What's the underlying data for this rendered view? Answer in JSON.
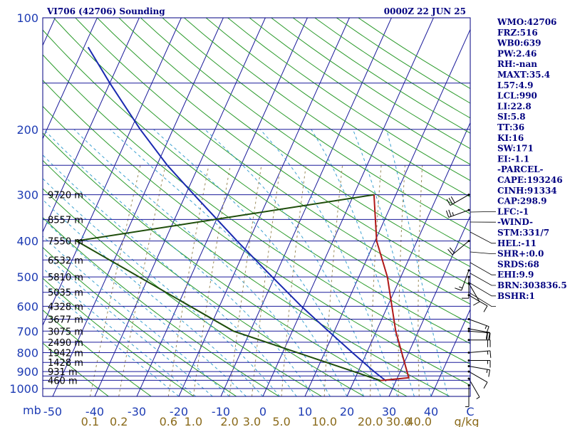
{
  "header": {
    "title": "VI706 (42706) Sounding",
    "time": "0000Z 22 JUN 25"
  },
  "colors": {
    "isobar": "#1a1a9a",
    "isotherm": "#1a1a9a",
    "dry_adiabat": "#2a9a2a",
    "moist_adiabat": "#3aa0d0",
    "mixing_ratio": "#9a8a5a",
    "temperature": "#b01818",
    "dewpoint": "#1e4d0a",
    "parcel": "#1a2ab0"
  },
  "chart_data": {
    "type": "skew-t",
    "pressure_unit": "mb",
    "pressure_ticks": [
      "100",
      "200",
      "300",
      "400",
      "500",
      "600",
      "700",
      "800",
      "900",
      "1000"
    ],
    "pressure_tick_values": [
      100,
      200,
      300,
      400,
      500,
      600,
      700,
      800,
      900,
      1000
    ],
    "isobar_levels": [
      100,
      150,
      200,
      250,
      300,
      350,
      400,
      450,
      500,
      550,
      600,
      650,
      700,
      750,
      800,
      850,
      900,
      925,
      950,
      1000
    ],
    "temp_ticks": [
      "-50",
      "-40",
      "-30",
      "-20",
      "-10",
      "0",
      "10",
      "20",
      "30",
      "40",
      "C"
    ],
    "temp_tick_values": [
      -50,
      -40,
      -30,
      -20,
      -10,
      0,
      10,
      20,
      30,
      40
    ],
    "temp_unit": "C",
    "mixing_ratio_ticks": [
      "0.1",
      "0.2",
      "0.6",
      "1.0",
      "2.0",
      "3.0",
      "5.0",
      "10.0",
      "20.0",
      "30.0",
      "40.0",
      "g/kg"
    ],
    "mixing_ratio_values": [
      0.1,
      0.2,
      0.6,
      1.0,
      2.0,
      3.0,
      5.0,
      10.0,
      20.0,
      30.0,
      40.0
    ],
    "height_labels": [
      {
        "p": 300,
        "text": "9720 m"
      },
      {
        "p": 350,
        "text": "8557 m"
      },
      {
        "p": 400,
        "text": "7550 m"
      },
      {
        "p": 450,
        "text": "6532 m"
      },
      {
        "p": 500,
        "text": "5810 m"
      },
      {
        "p": 550,
        "text": "5035 m"
      },
      {
        "p": 600,
        "text": "4328 m"
      },
      {
        "p": 650,
        "text": "3677 m"
      },
      {
        "p": 700,
        "text": "3075 m"
      },
      {
        "p": 750,
        "text": "2490 m"
      },
      {
        "p": 800,
        "text": "1942 m"
      },
      {
        "p": 850,
        "text": "1428 m"
      },
      {
        "p": 900,
        "text": "931 m"
      },
      {
        "p": 950,
        "text": "460 m"
      }
    ],
    "temperature_profile": [
      {
        "p": 952,
        "t": 26.3
      },
      {
        "p": 935,
        "t": 32.7
      },
      {
        "p": 700,
        "t": 24.6
      },
      {
        "p": 500,
        "t": 16.8
      },
      {
        "p": 400,
        "t": 10.4
      },
      {
        "p": 300,
        "t": 4.8
      }
    ],
    "dewpoint_profile": [
      {
        "p": 952,
        "t": 26.3
      },
      {
        "p": 700,
        "t": -14.0
      },
      {
        "p": 400,
        "t": -61.0
      },
      {
        "p": 300,
        "t": 4.8
      }
    ],
    "parcel_profile": [
      {
        "p": 120,
        "t": -79.0
      },
      {
        "p": 150,
        "t": -70.0
      },
      {
        "p": 200,
        "t": -57.8
      },
      {
        "p": 250,
        "t": -47.5
      },
      {
        "p": 300,
        "t": -38.0
      },
      {
        "p": 400,
        "t": -22.8
      },
      {
        "p": 500,
        "t": -10.6
      },
      {
        "p": 600,
        "t": -0.5
      },
      {
        "p": 700,
        "t": 8.6
      },
      {
        "p": 800,
        "t": 16.6
      },
      {
        "p": 900,
        "t": 23.8
      },
      {
        "p": 955,
        "t": 27.7
      }
    ],
    "wind_barbs": [
      {
        "p": 300,
        "dir": 240,
        "spd": 30
      },
      {
        "p": 330,
        "dir": 250,
        "spd": 25
      },
      {
        "p": 400,
        "dir": 230,
        "spd": 20
      },
      {
        "p": 480,
        "dir": 200,
        "spd": 15
      },
      {
        "p": 500,
        "dir": 180,
        "spd": 10
      },
      {
        "p": 520,
        "dir": 150,
        "spd": 10
      },
      {
        "p": 560,
        "dir": 120,
        "spd": 10
      },
      {
        "p": 650,
        "dir": 110,
        "spd": 15
      },
      {
        "p": 690,
        "dir": 100,
        "spd": 20
      },
      {
        "p": 700,
        "dir": 95,
        "spd": 20
      },
      {
        "p": 740,
        "dir": 90,
        "spd": 20
      },
      {
        "p": 800,
        "dir": 85,
        "spd": 15
      },
      {
        "p": 840,
        "dir": 90,
        "spd": 15
      },
      {
        "p": 870,
        "dir": 100,
        "spd": 15
      },
      {
        "p": 900,
        "dir": 120,
        "spd": 10
      },
      {
        "p": 940,
        "dir": 150,
        "spd": 5
      },
      {
        "p": 980,
        "dir": 180,
        "spd": 5
      }
    ]
  },
  "indices": [
    "WMO:42706",
    "FRZ:516",
    "WB0:639",
    "PW:2.46",
    "RH:-nan",
    "MAXT:35.4",
    "L57:4.9",
    "LCL:990",
    "LI:22.8",
    "SI:5.8",
    "TT:36",
    "KI:16",
    "SW:171",
    "EI:-1.1",
    "-PARCEL-",
    "CAPE:193246",
    "CINH:91334",
    "CAP:298.9",
    "LFC:-1",
    "-WIND-",
    "STM:331/7",
    "HEL:-11",
    "SHR+:0.0",
    "SRDS:68",
    "EHI:9.9",
    "BRN:303836.5",
    "BSHR:1"
  ]
}
